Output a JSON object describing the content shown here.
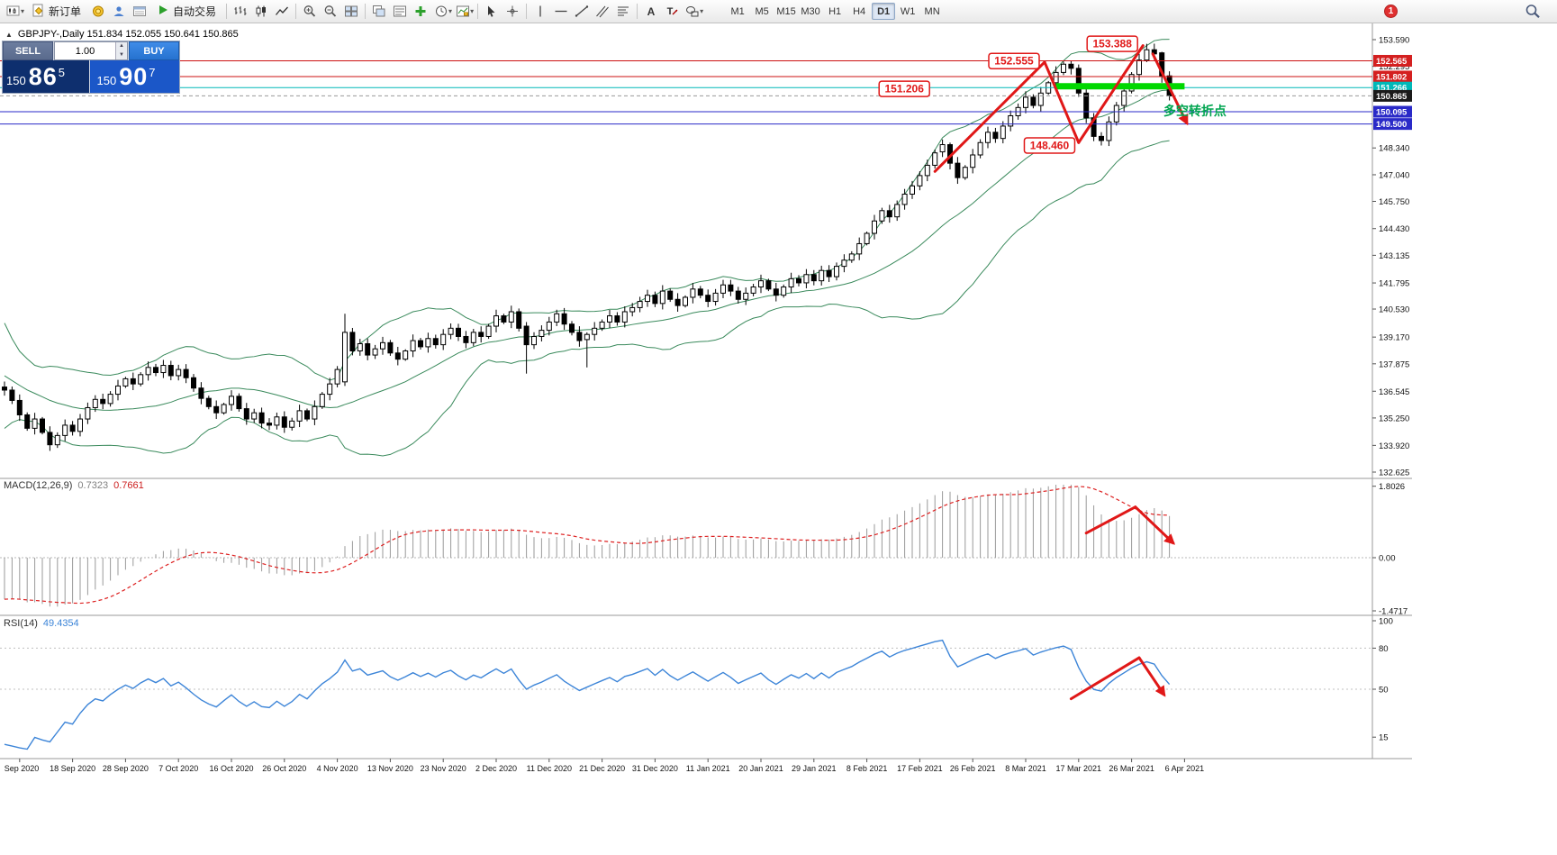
{
  "toolbar": {
    "new_order": "新订单",
    "autotrading": "自动交易",
    "timeframes": [
      "M1",
      "M5",
      "M15",
      "M30",
      "H1",
      "H4",
      "D1",
      "W1",
      "MN"
    ],
    "active_timeframe": "D1",
    "badge": "1",
    "icons": [
      "new-chart",
      "new-order",
      "market-watch",
      "accounts",
      "history-center",
      "autotrading",
      "bar-chart",
      "candlestick-chart",
      "line-chart",
      "zoom-in",
      "zoom-out",
      "tile-windows",
      "cascade-windows",
      "window-list",
      "insert-indicator",
      "periods",
      "templates",
      "cursor",
      "crosshair",
      "vertical-line",
      "horizontal-line",
      "trendline",
      "equidistant-channel",
      "fibonacci",
      "text",
      "text-label",
      "shapes",
      "search"
    ]
  },
  "chart_header": {
    "symbol_info": "GBPJPY-,Daily  151.834 152.055 150.641 150.865"
  },
  "trade_panel": {
    "sell_label": "SELL",
    "buy_label": "BUY",
    "volume": "1.00",
    "sell_price_prefix": "150",
    "sell_price_main": "86",
    "sell_price_sup": "5",
    "buy_price_prefix": "150",
    "buy_price_main": "90",
    "buy_price_sup": "7"
  },
  "indicators": {
    "macd_name": "MACD(12,26,9)",
    "macd_value": "0.7323",
    "macd_signal": "0.7661",
    "rsi_name": "RSI(14)",
    "rsi_value": "49.4354"
  },
  "chart_data": {
    "type": "candlestick",
    "symbol": "GBPJPY-",
    "period": "Daily",
    "current_ohlc": {
      "open": 151.834,
      "high": 152.055,
      "low": 150.641,
      "close": 150.865
    },
    "price_axis_ticks": [
      {
        "t": "153.590",
        "p": 153.59
      },
      {
        "t": "152.295",
        "p": 152.295
      },
      {
        "t": "148.340",
        "p": 148.34
      },
      {
        "t": "147.040",
        "p": 147.04
      },
      {
        "t": "145.750",
        "p": 145.75
      },
      {
        "t": "144.430",
        "p": 144.43
      },
      {
        "t": "143.135",
        "p": 143.135
      },
      {
        "t": "141.795",
        "p": 141.795
      },
      {
        "t": "140.530",
        "p": 140.53
      },
      {
        "t": "139.170",
        "p": 139.17
      },
      {
        "t": "137.875",
        "p": 137.875
      },
      {
        "t": "136.545",
        "p": 136.545
      },
      {
        "t": "135.250",
        "p": 135.25
      },
      {
        "t": "133.920",
        "p": 133.92
      },
      {
        "t": "132.625",
        "p": 132.625
      }
    ],
    "axis_badges": [
      {
        "text": "152.565",
        "price": 152.565,
        "bg": "#d42020"
      },
      {
        "text": "151.802",
        "price": 151.802,
        "bg": "#d42020"
      },
      {
        "text": "151.266",
        "price": 151.266,
        "bg": "#00b8b8"
      },
      {
        "text": "150.865",
        "price": 150.865,
        "bg": "#1a1a1a"
      },
      {
        "text": "150.095",
        "price": 150.095,
        "bg": "#2a2ac8"
      },
      {
        "text": "149.500",
        "price": 149.5,
        "bg": "#2a2ac8"
      }
    ],
    "levels": [
      {
        "price": 152.565,
        "color": "#cc1111",
        "style": "solid"
      },
      {
        "price": 151.802,
        "color": "#cc1111",
        "style": "solid"
      },
      {
        "price": 151.266,
        "color": "#00b8b8",
        "style": "solid"
      },
      {
        "price": 150.095,
        "color": "#2a2ac8",
        "style": "solid"
      },
      {
        "price": 149.5,
        "color": "#2a2ac8",
        "style": "solid"
      },
      {
        "price": 150.865,
        "color": "#999999",
        "style": "dashed"
      }
    ],
    "green_zone": {
      "from_i": 139,
      "to_i": 156,
      "price": 151.33,
      "thickness": 7,
      "color": "#00d800"
    },
    "turning_point": {
      "text": "多空转折点",
      "i": 153.2,
      "price": 149.92
    },
    "callouts": [
      {
        "text": "151.206",
        "i": 123,
        "price": 151.206
      },
      {
        "text": "152.555",
        "i": 137.5,
        "price": 152.555
      },
      {
        "text": "153.388",
        "i": 150.5,
        "price": 153.388
      },
      {
        "text": "148.460",
        "i": 142.2,
        "price": 148.46
      }
    ],
    "arrows": {
      "main": [
        {
          "pts": [
            [
              123,
              147.2
            ],
            [
              137.5,
              152.5
            ]
          ],
          "head": false
        },
        {
          "pts": [
            [
              137.5,
              152.5
            ],
            [
              142,
              148.6
            ]
          ],
          "head": false
        },
        {
          "pts": [
            [
              142,
              148.6
            ],
            [
              150.5,
              153.3
            ]
          ],
          "head": false
        },
        {
          "pts": [
            [
              151.8,
              152.9
            ],
            [
              156.3,
              149.55
            ]
          ],
          "head": true
        }
      ],
      "macd": [
        {
          "pts": [
            [
              143,
              0.62
            ],
            [
              149.5,
              1.28
            ]
          ],
          "head": false
        },
        {
          "pts": [
            [
              149.5,
              1.28
            ],
            [
              154.5,
              0.37
            ]
          ],
          "head": true
        }
      ],
      "rsi": [
        {
          "pts": [
            [
              141,
              43
            ],
            [
              150,
              73
            ]
          ],
          "head": false
        },
        {
          "pts": [
            [
              150,
              73
            ],
            [
              153.3,
              46
            ]
          ],
          "head": true
        }
      ]
    },
    "macd_axis_ticks": [
      {
        "t": "1.8026",
        "v": 1.8026
      },
      {
        "t": "0.00",
        "v": 0
      },
      {
        "t": "-1.4717",
        "v": -1.4717
      }
    ],
    "rsi_axis_ticks": [
      {
        "t": "100",
        "v": 100
      },
      {
        "t": "80",
        "v": 80
      },
      {
        "t": "50",
        "v": 50
      },
      {
        "t": "15",
        "v": 15
      }
    ],
    "rsi_levels": [
      80,
      50
    ],
    "dates": [
      [
        "Sep 2020",
        2
      ],
      [
        "18 Sep 2020",
        9
      ],
      [
        "28 Sep 2020",
        16
      ],
      [
        "7 Oct 2020",
        23
      ],
      [
        "16 Oct 2020",
        30
      ],
      [
        "26 Oct 2020",
        37
      ],
      [
        "4 Nov 2020",
        44
      ],
      [
        "13 Nov 2020",
        51
      ],
      [
        "23 Nov 2020",
        58
      ],
      [
        "2 Dec 2020",
        65
      ],
      [
        "11 Dec 2020",
        72
      ],
      [
        "21 Dec 2020",
        79
      ],
      [
        "31 Dec 2020",
        86
      ],
      [
        "11 Jan 2021",
        93
      ],
      [
        "20 Jan 2021",
        100
      ],
      [
        "29 Jan 2021",
        107
      ],
      [
        "8 Feb 2021",
        114
      ],
      [
        "17 Feb 2021",
        121
      ],
      [
        "26 Feb 2021",
        128
      ],
      [
        "8 Mar 2021",
        135
      ],
      [
        "17 Mar 2021",
        142
      ],
      [
        "26 Mar 2021",
        149
      ],
      [
        "6 Apr 2021",
        156
      ]
    ],
    "closes": [
      136.6,
      136.1,
      135.4,
      134.75,
      135.2,
      134.55,
      133.95,
      134.4,
      134.9,
      134.6,
      135.2,
      135.75,
      136.15,
      135.95,
      136.4,
      136.8,
      137.15,
      136.9,
      137.35,
      137.7,
      137.45,
      137.8,
      137.3,
      137.6,
      137.2,
      136.7,
      136.2,
      135.8,
      135.5,
      135.9,
      136.3,
      135.7,
      135.2,
      135.5,
      135.0,
      134.9,
      135.3,
      134.8,
      135.1,
      135.6,
      135.2,
      135.8,
      136.4,
      136.9,
      137.6,
      139.4,
      138.5,
      138.85,
      138.3,
      138.6,
      138.9,
      138.4,
      138.1,
      138.5,
      139.0,
      138.7,
      139.1,
      138.8,
      139.3,
      139.6,
      139.2,
      138.9,
      139.4,
      139.2,
      139.7,
      140.2,
      139.9,
      140.4,
      139.6,
      138.8,
      139.2,
      139.5,
      139.9,
      140.3,
      139.8,
      139.4,
      139.0,
      139.3,
      139.6,
      139.9,
      140.2,
      139.9,
      140.4,
      140.6,
      140.9,
      141.2,
      140.8,
      141.4,
      141.0,
      140.7,
      141.1,
      141.5,
      141.2,
      140.9,
      141.3,
      141.7,
      141.4,
      141.0,
      141.3,
      141.6,
      141.9,
      141.5,
      141.2,
      141.6,
      142.0,
      141.8,
      142.2,
      141.9,
      142.4,
      142.1,
      142.6,
      142.9,
      143.2,
      143.7,
      144.2,
      144.8,
      145.3,
      145.0,
      145.6,
      146.1,
      146.5,
      147.0,
      147.5,
      148.1,
      148.5,
      147.6,
      146.9,
      147.4,
      148.0,
      148.6,
      149.1,
      148.8,
      149.4,
      149.9,
      150.3,
      150.8,
      150.4,
      151.0,
      151.5,
      152.0,
      152.4,
      152.2,
      151.0,
      149.8,
      148.9,
      148.7,
      149.6,
      150.4,
      151.1,
      151.9,
      152.6,
      153.1,
      152.9,
      151.83,
      150.865
    ],
    "overrides": {
      "45": [
        137.0,
        140.3,
        136.8,
        139.4
      ],
      "69": [
        139.7,
        139.9,
        137.4,
        138.8
      ],
      "77": [
        139.05,
        139.4,
        137.7,
        139.3
      ],
      "124": [
        148.15,
        148.75,
        147.9,
        148.5
      ],
      "125": [
        148.5,
        148.6,
        147.3,
        147.6
      ],
      "141": [
        152.4,
        152.555,
        151.9,
        152.2
      ],
      "145": [
        148.9,
        149.1,
        148.46,
        148.7
      ],
      "151": [
        152.6,
        153.388,
        152.5,
        153.1
      ],
      "153": [
        152.95,
        153.0,
        151.5,
        151.83
      ],
      "154": [
        151.834,
        152.055,
        150.641,
        150.865
      ]
    },
    "pad_history": [
      141.5,
      140.8,
      140.0,
      139.2,
      138.5,
      137.9,
      137.4,
      137.0,
      136.8,
      136.6,
      136.5,
      136.4,
      136.5,
      136.6,
      136.5,
      136.4,
      136.5,
      136.6,
      136.5,
      136.6
    ]
  }
}
